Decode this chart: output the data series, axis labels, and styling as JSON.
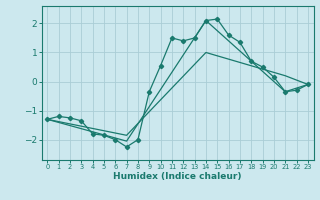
{
  "xlabel": "Humidex (Indice chaleur)",
  "bg_color": "#cce8ee",
  "line_color": "#1a7a6e",
  "grid_color": "#aacdd6",
  "xlim": [
    -0.5,
    23.5
  ],
  "ylim": [
    -2.7,
    2.6
  ],
  "xticks": [
    0,
    1,
    2,
    3,
    4,
    5,
    6,
    7,
    8,
    9,
    10,
    11,
    12,
    13,
    14,
    15,
    16,
    17,
    18,
    19,
    20,
    21,
    22,
    23
  ],
  "yticks": [
    -2,
    -1,
    0,
    1,
    2
  ],
  "line1_x": [
    0,
    1,
    2,
    3,
    4,
    5,
    6,
    7,
    8,
    9,
    10,
    11,
    12,
    13,
    14,
    15,
    16,
    17,
    18,
    19,
    20,
    21,
    22,
    23
  ],
  "line1_y": [
    -1.3,
    -1.2,
    -1.25,
    -1.35,
    -1.8,
    -1.85,
    -2.0,
    -2.25,
    -2.0,
    -0.35,
    0.55,
    1.5,
    1.4,
    1.5,
    2.1,
    2.15,
    1.6,
    1.35,
    0.7,
    0.5,
    0.15,
    -0.35,
    -0.3,
    -0.1
  ],
  "line2_x": [
    0,
    7,
    14,
    21,
    23
  ],
  "line2_y": [
    -1.3,
    -2.05,
    2.1,
    -0.35,
    -0.1
  ],
  "line3_x": [
    0,
    7,
    14,
    21,
    23
  ],
  "line3_y": [
    -1.3,
    -1.85,
    1.0,
    0.2,
    -0.1
  ]
}
